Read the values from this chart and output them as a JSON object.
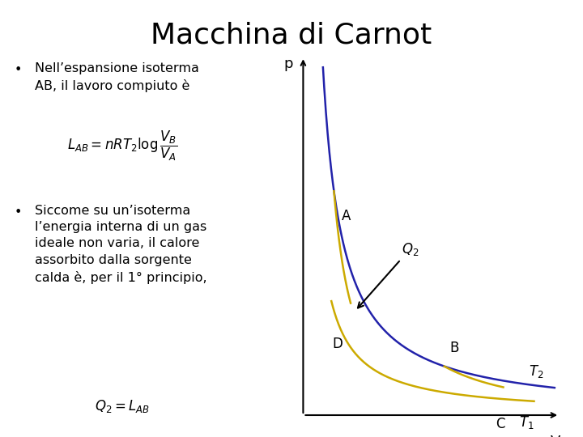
{
  "title": "Macchina di Carnot",
  "title_fontsize": 26,
  "title_fontweight": "normal",
  "bg_color": "#ffffff",
  "bullet1_line1": "Nell’espansione isoterma",
  "bullet1_line2": "AB, il lavoro compiuto è",
  "bullet2_line1": "Siccome su un’isoterma",
  "bullet2_line2": "l’energia interna di un gas",
  "bullet2_line3": "ideale non varia, il calore",
  "bullet2_line4": "assorbito dalla sorgente",
  "bullet2_line5": "calda è, per il 1° principio,",
  "formula1": "$L_{AB} = nRT_2 \\log \\dfrac{V_B}{V_A}$",
  "formula2": "$Q_2 = L_{AB}$",
  "diagram": {
    "xlim": [
      0,
      10
    ],
    "ylim": [
      0,
      10
    ],
    "isotherm_T2_color": "#2222aa",
    "isotherm_T1_color": "#ccaa00",
    "k_T2": 7.5,
    "k_T1": 3.5,
    "gamma": 1.6,
    "vA": 1.2,
    "vB": 5.5,
    "vC": 7.8,
    "vD": 1.85,
    "label_A": "A",
    "label_B": "B",
    "label_C": "C",
    "label_D": "D",
    "label_T2": "$T_2$",
    "label_T1": "$T_1$",
    "label_Q2": "$Q_2$",
    "label_p": "p",
    "label_V": "V"
  }
}
